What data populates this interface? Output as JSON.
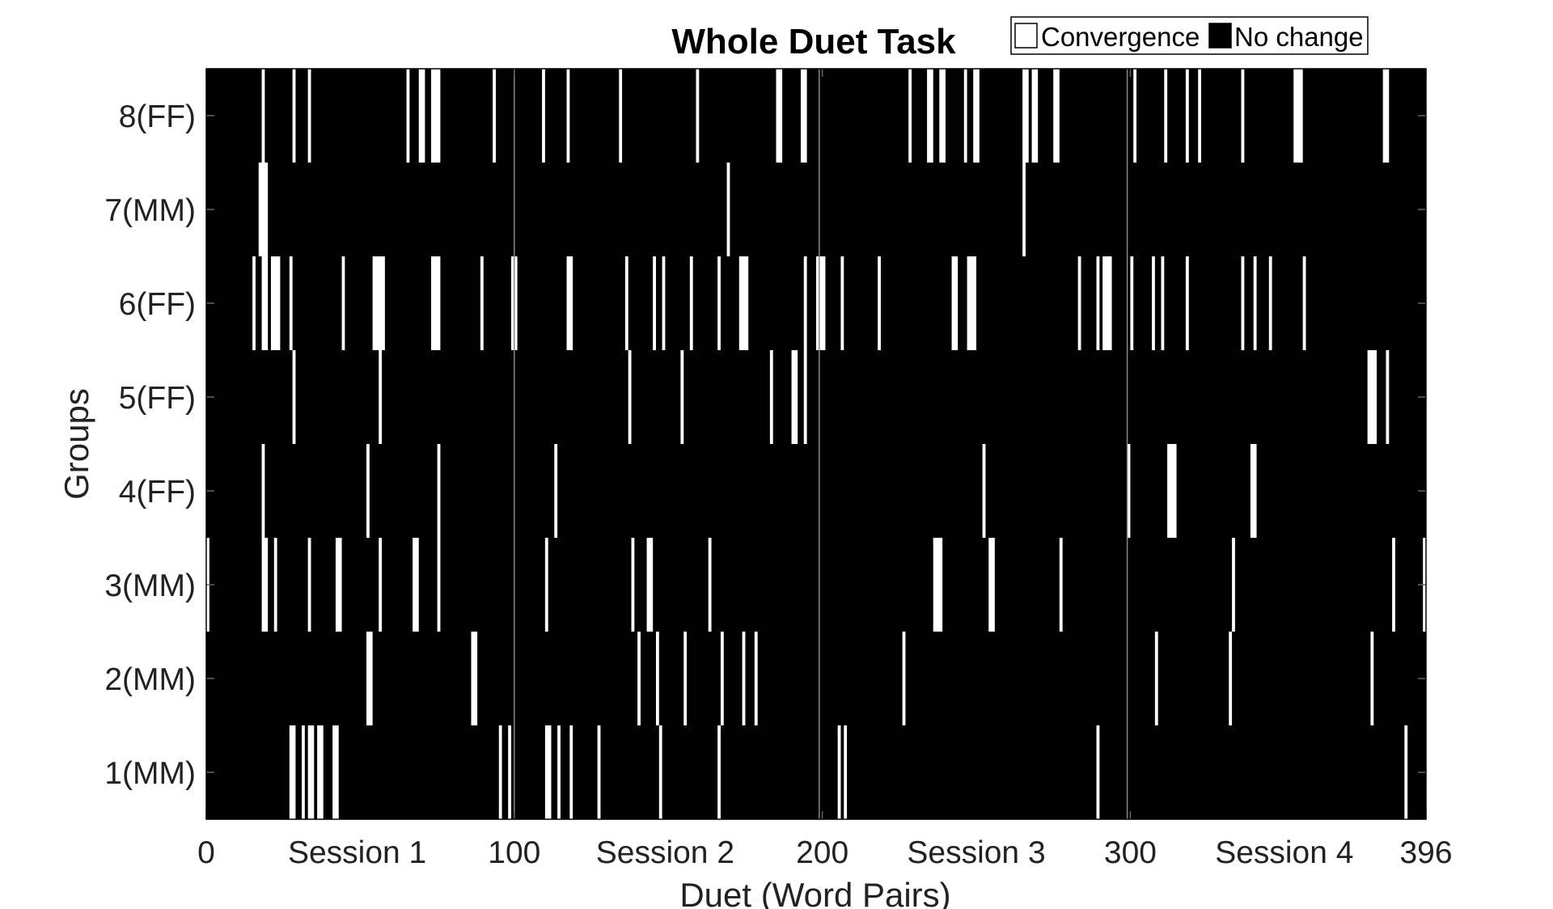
{
  "chart_data": {
    "type": "heatmap",
    "title": "Whole Duet Task",
    "xlabel": "Duet (Word Pairs)",
    "ylabel": "Groups",
    "xlim": [
      0,
      396
    ],
    "x_ticks": [
      {
        "value": 0,
        "label": "0"
      },
      {
        "value": 100,
        "label": "100"
      },
      {
        "value": 200,
        "label": "200"
      },
      {
        "value": 300,
        "label": "300"
      },
      {
        "value": 396,
        "label": "396"
      }
    ],
    "session_labels": [
      {
        "center": 49,
        "label": "Session 1"
      },
      {
        "center": 149,
        "label": "Session 2"
      },
      {
        "center": 250,
        "label": "Session 3"
      },
      {
        "center": 350,
        "label": "Session 4"
      }
    ],
    "session_boundaries": [
      99,
      198,
      298
    ],
    "legend": {
      "placement": "top-right",
      "entries": [
        {
          "label": "Convergence",
          "color": "#ffffff"
        },
        {
          "label": "No change",
          "color": "#000000"
        }
      ]
    },
    "colors": {
      "convergence": "#ffffff",
      "no_change": "#000000",
      "separator": "#888888"
    },
    "groups": [
      {
        "label": "1(MM)",
        "convergence_ranges": [
          [
            27,
            28
          ],
          [
            31,
            31
          ],
          [
            33,
            34
          ],
          [
            36,
            37
          ],
          [
            41,
            42
          ],
          [
            95,
            95
          ],
          [
            98,
            98
          ],
          [
            110,
            111
          ],
          [
            114,
            114
          ],
          [
            118,
            118
          ],
          [
            127,
            127
          ],
          [
            147,
            147
          ],
          [
            166,
            166
          ],
          [
            205,
            205
          ],
          [
            207,
            207
          ],
          [
            289,
            289
          ],
          [
            389,
            389
          ]
        ]
      },
      {
        "label": "2(MM)",
        "convergence_ranges": [
          [
            52,
            53
          ],
          [
            86,
            87
          ],
          [
            140,
            140
          ],
          [
            146,
            146
          ],
          [
            155,
            155
          ],
          [
            167,
            167
          ],
          [
            174,
            174
          ],
          [
            178,
            178
          ],
          [
            226,
            226
          ],
          [
            308,
            308
          ],
          [
            332,
            332
          ],
          [
            378,
            378
          ]
        ]
      },
      {
        "label": "3(MM)",
        "convergence_ranges": [
          [
            0,
            0
          ],
          [
            18,
            19
          ],
          [
            22,
            22
          ],
          [
            33,
            33
          ],
          [
            42,
            43
          ],
          [
            56,
            56
          ],
          [
            67,
            68
          ],
          [
            75,
            75
          ],
          [
            110,
            110
          ],
          [
            138,
            138
          ],
          [
            143,
            144
          ],
          [
            163,
            163
          ],
          [
            236,
            238
          ],
          [
            254,
            255
          ],
          [
            277,
            277
          ],
          [
            333,
            333
          ],
          [
            385,
            385
          ],
          [
            395,
            395
          ]
        ]
      },
      {
        "label": "4(FF)",
        "convergence_ranges": [
          [
            18,
            18
          ],
          [
            52,
            52
          ],
          [
            75,
            75
          ],
          [
            113,
            113
          ],
          [
            252,
            252
          ],
          [
            299,
            299
          ],
          [
            312,
            314
          ],
          [
            339,
            340
          ]
        ]
      },
      {
        "label": "5(FF)",
        "convergence_ranges": [
          [
            28,
            28
          ],
          [
            56,
            56
          ],
          [
            137,
            137
          ],
          [
            154,
            154
          ],
          [
            183,
            183
          ],
          [
            190,
            191
          ],
          [
            194,
            194
          ],
          [
            377,
            379
          ],
          [
            383,
            383
          ]
        ]
      },
      {
        "label": "6(FF)",
        "convergence_ranges": [
          [
            15,
            15
          ],
          [
            18,
            19
          ],
          [
            21,
            23
          ],
          [
            27,
            27
          ],
          [
            44,
            44
          ],
          [
            54,
            57
          ],
          [
            73,
            75
          ],
          [
            89,
            89
          ],
          [
            99,
            100
          ],
          [
            117,
            118
          ],
          [
            136,
            136
          ],
          [
            145,
            145
          ],
          [
            148,
            148
          ],
          [
            157,
            157
          ],
          [
            166,
            166
          ],
          [
            173,
            175
          ],
          [
            194,
            194
          ],
          [
            198,
            200
          ],
          [
            206,
            206
          ],
          [
            218,
            218
          ],
          [
            242,
            243
          ],
          [
            247,
            249
          ],
          [
            283,
            283
          ],
          [
            289,
            289
          ],
          [
            291,
            293
          ],
          [
            300,
            300
          ],
          [
            307,
            307
          ],
          [
            310,
            310
          ],
          [
            318,
            318
          ],
          [
            336,
            336
          ],
          [
            340,
            340
          ],
          [
            345,
            345
          ],
          [
            356,
            356
          ]
        ]
      },
      {
        "label": "7(MM)",
        "convergence_ranges": [
          [
            17,
            19
          ],
          [
            169,
            169
          ],
          [
            265,
            265
          ]
        ]
      },
      {
        "label": "8(FF)",
        "convergence_ranges": [
          [
            18,
            18
          ],
          [
            28,
            28
          ],
          [
            33,
            33
          ],
          [
            65,
            65
          ],
          [
            69,
            70
          ],
          [
            73,
            75
          ],
          [
            93,
            93
          ],
          [
            109,
            109
          ],
          [
            117,
            117
          ],
          [
            134,
            134
          ],
          [
            159,
            159
          ],
          [
            185,
            186
          ],
          [
            193,
            194
          ],
          [
            228,
            228
          ],
          [
            234,
            235
          ],
          [
            238,
            239
          ],
          [
            246,
            246
          ],
          [
            249,
            250
          ],
          [
            265,
            266
          ],
          [
            268,
            269
          ],
          [
            275,
            276
          ],
          [
            301,
            301
          ],
          [
            311,
            311
          ],
          [
            318,
            318
          ],
          [
            322,
            322
          ],
          [
            336,
            336
          ],
          [
            353,
            355
          ],
          [
            382,
            383
          ]
        ]
      }
    ]
  }
}
